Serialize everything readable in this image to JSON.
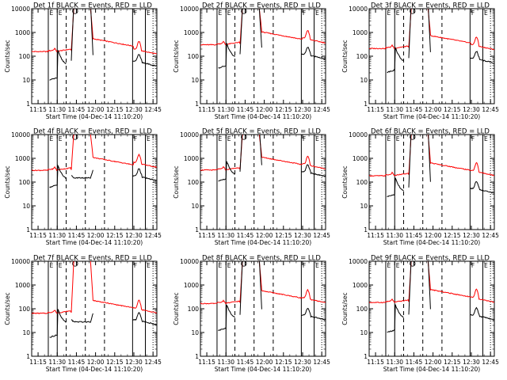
{
  "page": {
    "background": "#ffffff"
  },
  "colors": {
    "events": "#000000",
    "lld": "#ff0000",
    "axis": "#000000"
  },
  "chart_data": {
    "type": "line",
    "layout": "3x3 grid",
    "y_scale": "log",
    "ylim": [
      1,
      10000
    ],
    "ytick_labels": [
      "1",
      "10",
      "100",
      "1000",
      "10000"
    ],
    "ylabel": "Counts/sec",
    "xlabel": "Start Time (04-Dec-14 11:10:20)",
    "xlim_minutes_after_11_10": [
      0,
      98
    ],
    "xtick_labels": [
      "11:15",
      "11:30",
      "11:45",
      "12:00",
      "12:15",
      "12:30",
      "12:45"
    ],
    "legend_text": "BLACK = Events, RED = LLD",
    "vertical_markers": {
      "solid_minutes": [
        13,
        20,
        79,
        89
      ],
      "dashed_minutes": [
        27,
        42,
        57
      ],
      "dotted_minutes": [
        95
      ],
      "marker_labels": [
        "E",
        "E",
        "F",
        "E"
      ]
    },
    "panels": [
      {
        "title": "Det 1f",
        "events_max": 20000,
        "events_base": 45,
        "lld_base": 170,
        "lld_after": 130,
        "pre_black_scale": 0.22
      },
      {
        "title": "Det 2f",
        "events_max": 12000,
        "events_base": 90,
        "lld_base": 330,
        "lld_after": 380,
        "pre_black_scale": 0.35
      },
      {
        "title": "Det 3f",
        "events_max": 25000,
        "events_base": 60,
        "lld_base": 230,
        "lld_after": 200,
        "pre_black_scale": 0.35
      },
      {
        "title": "Det 4f",
        "events_max": 150,
        "events_base": 135,
        "lld_base": 340,
        "lld_after": 440,
        "pre_black_scale": 0.45
      },
      {
        "title": "Det 5f",
        "events_max": 25000,
        "events_base": 200,
        "lld_base": 350,
        "lld_after": 380,
        "pre_black_scale": 0.55
      },
      {
        "title": "Det 6f",
        "events_max": 25000,
        "events_base": 40,
        "lld_base": 200,
        "lld_after": 200,
        "pre_black_scale": 0.6
      },
      {
        "title": "Det 7f",
        "events_max": 28,
        "events_base": 25,
        "lld_base": 70,
        "lld_after": 70,
        "pre_black_scale": 0.25
      },
      {
        "title": "Det 8f",
        "events_max": 15000,
        "events_base": 40,
        "lld_base": 180,
        "lld_after": 190,
        "pre_black_scale": 0.3
      },
      {
        "title": "Det 9f",
        "events_max": 18000,
        "events_base": 40,
        "lld_base": 200,
        "lld_after": 200,
        "pre_black_scale": 0.25
      }
    ]
  }
}
